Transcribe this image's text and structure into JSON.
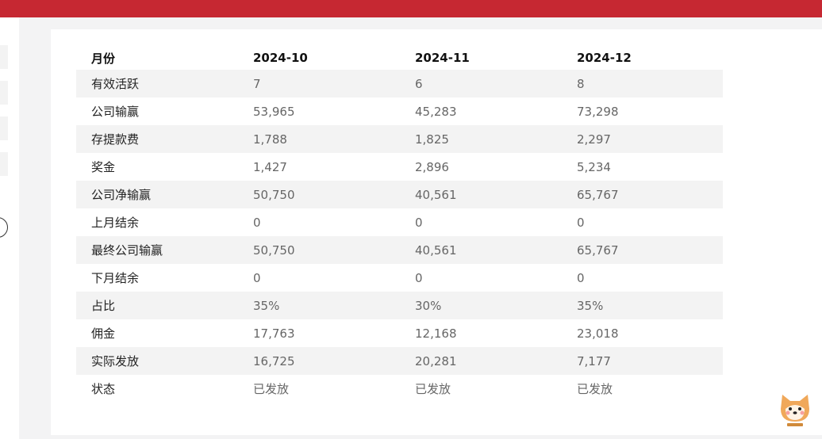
{
  "table": {
    "headers": [
      "月份",
      "2024-10",
      "2024-11",
      "2024-12"
    ],
    "rows": [
      [
        "有效活跃",
        "7",
        "6",
        "8"
      ],
      [
        "公司输赢",
        "53,965",
        "45,283",
        "73,298"
      ],
      [
        "存提款费",
        "1,788",
        "1,825",
        "2,297"
      ],
      [
        "奖金",
        "1,427",
        "2,896",
        "5,234"
      ],
      [
        "公司净输赢",
        "50,750",
        "40,561",
        "65,767"
      ],
      [
        "上月结余",
        "0",
        "0",
        "0"
      ],
      [
        "最终公司输赢",
        "50,750",
        "40,561",
        "65,767"
      ],
      [
        "下月结余",
        "0",
        "0",
        "0"
      ],
      [
        "占比",
        "35%",
        "30%",
        "35%"
      ],
      [
        "佣金",
        "17,763",
        "12,168",
        "23,018"
      ],
      [
        "实际发放",
        "16,725",
        "20,281",
        "7,177"
      ],
      [
        "状态",
        "已发放",
        "已发放",
        "已发放"
      ]
    ]
  },
  "colors": {
    "topbar": "#c62832",
    "row_alt": "#f3f3f3"
  },
  "mascot": "shiba-dog-icon"
}
